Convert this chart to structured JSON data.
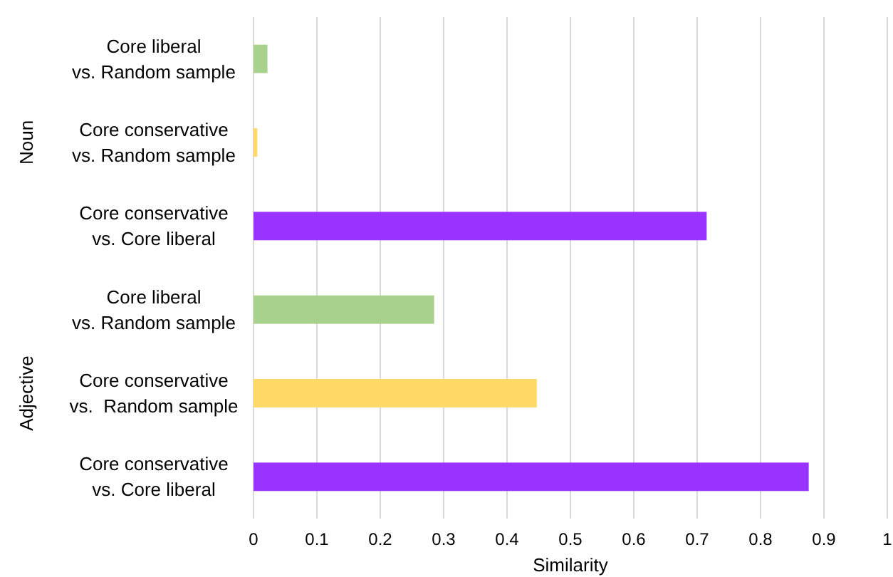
{
  "chart_data": {
    "type": "bar",
    "orientation": "horizontal",
    "categories": [
      "Core liberal\nvs. Random sample",
      "Core conservative\nvs. Random sample",
      "Core conservative\nvs. Core liberal",
      "Core liberal\nvs. Random sample",
      "Core conservative\nvs.  Random sample",
      "Core conservative\nvs. Core liberal"
    ],
    "values": [
      0.022,
      0.006,
      0.715,
      0.285,
      0.447,
      0.876
    ],
    "colors": [
      "#a9d18e",
      "#ffd966",
      "#9933ff",
      "#a9d18e",
      "#ffd966",
      "#9933ff"
    ],
    "xlim": [
      0,
      1
    ],
    "xticks": [
      0,
      0.1,
      0.2,
      0.3,
      0.4,
      0.5,
      0.6,
      0.7,
      0.8,
      0.9,
      1
    ],
    "xlabel": "Similarity",
    "annotations": [
      "Noun",
      "Adjective"
    ],
    "grid": "x"
  }
}
